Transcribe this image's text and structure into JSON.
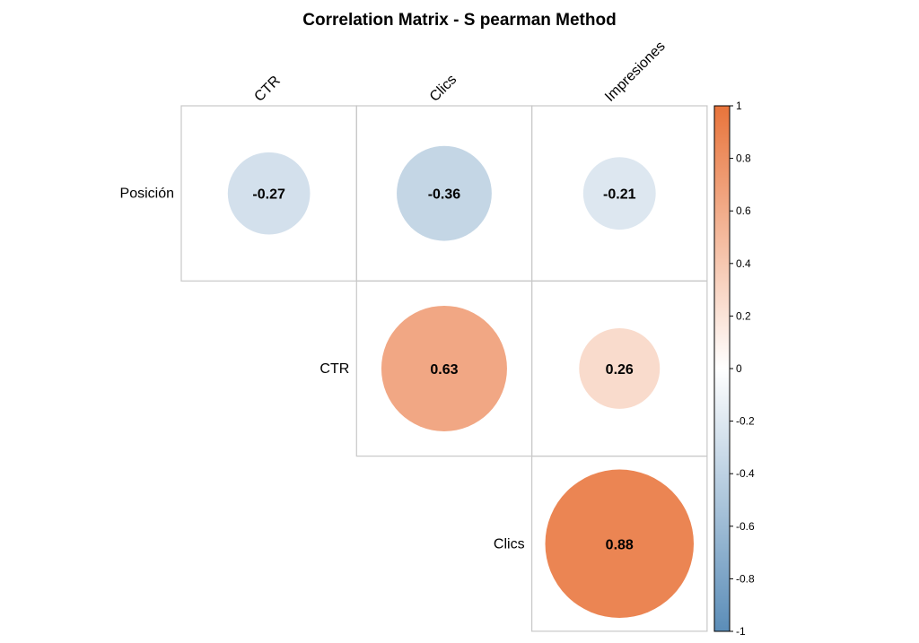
{
  "chart_data": {
    "type": "heatmap",
    "title": "Correlation Matrix - S pearman Method",
    "col_labels": [
      "CTR",
      "Clics",
      "Impresiones"
    ],
    "row_labels": [
      "Posición",
      "CTR",
      "Clics"
    ],
    "cells": [
      {
        "row": "Posición",
        "col": "CTR",
        "value": -0.27,
        "label": "-0.27"
      },
      {
        "row": "Posición",
        "col": "Clics",
        "value": -0.36,
        "label": "-0.36"
      },
      {
        "row": "Posición",
        "col": "Impresiones",
        "value": -0.21,
        "label": "-0.21"
      },
      {
        "row": "CTR",
        "col": "Clics",
        "value": 0.63,
        "label": "0.63"
      },
      {
        "row": "CTR",
        "col": "Impresiones",
        "value": 0.26,
        "label": "0.26"
      },
      {
        "row": "Clics",
        "col": "Impresiones",
        "value": 0.88,
        "label": "0.88"
      }
    ],
    "colorbar": {
      "range": [
        -1,
        1
      ],
      "ticks": [
        "1",
        "0.8",
        "0.6",
        "0.4",
        "0.2",
        "0",
        "-0.2",
        "-0.4",
        "-0.6",
        "-0.8",
        "-1"
      ],
      "colors": {
        "negative": "#5b8db8",
        "zero": "#ffffff",
        "positive": "#e8743b"
      }
    },
    "layout": "upper-triangle",
    "legend": "right"
  }
}
